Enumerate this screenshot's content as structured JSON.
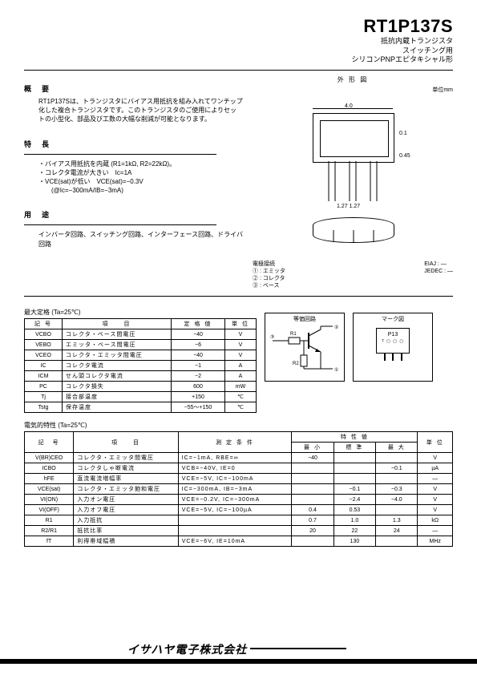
{
  "header": {
    "part_number": "RT1P137S",
    "subtitle_line1": "抵抗内蔵トランジスタ",
    "subtitle_line2": "スイッチング用",
    "subtitle_line3": "シリコンPNPエピタキシャル形"
  },
  "overview": {
    "heading": "概　要",
    "body": "RT1P137Sは、トランジスタにバイアス用抵抗を組み入れてワンチップ化した複合トランジスタです。このトランジスタのご使用によりセットの小型化、部品及び工数の大幅な削減が可能となります。"
  },
  "features": {
    "heading": "特　長",
    "items": [
      "・バイアス用抵抗を内蔵 (R1=1kΩ, R2=22kΩ)。",
      "・コレクタ電流が大きい　Ic=1A",
      "・VCE(sat)が低い　VCE(sat)=−0.3V\n　　(@Ic=−300mA/IB=−3mA)"
    ]
  },
  "applications": {
    "heading": "用　途",
    "body": "インバータ回路、スイッチング回路、インターフェース回路、ドライバ回路"
  },
  "outline": {
    "heading": "外 形 図",
    "unit": "単位mm",
    "dims": {
      "width": "4.0",
      "marker": "0.1",
      "lead_thickness": "0.45",
      "pitch": "1.27 1.27"
    },
    "pinout_heading": "電極接続",
    "pins": [
      "① : エミッタ",
      "② : コレクタ",
      "③ : ベース"
    ],
    "eiaj": "EIAJ : —",
    "jedec": "JEDEC : —"
  },
  "ratings": {
    "caption": "最大定格 (Ta=25℃)",
    "headers": [
      "記 号",
      "項　　目",
      "定 格 値",
      "単 位"
    ],
    "rows": [
      [
        "VCBO",
        "コレクタ・ベース間電圧",
        "−40",
        "V"
      ],
      [
        "VEBO",
        "エミッタ・ベース間電圧",
        "−6",
        "V"
      ],
      [
        "VCEO",
        "コレクタ・エミッタ間電圧",
        "−40",
        "V"
      ],
      [
        "IC",
        "コレクタ電流",
        "−1",
        "A"
      ],
      [
        "ICM",
        "せん頭コレクタ電流",
        "−2",
        "A"
      ],
      [
        "PC",
        "コレクタ損失",
        "600",
        "mW"
      ],
      [
        "Tj",
        "接合部温度",
        "+150",
        "℃"
      ],
      [
        "Tstg",
        "保存温度",
        "−55〜+150",
        "℃"
      ]
    ]
  },
  "equiv_circuit": {
    "heading": "等価回路",
    "labels": {
      "in": "(IN)",
      "out": "(OUT)",
      "gnd": "(GND)",
      "r1": "R1",
      "r2": "R2"
    }
  },
  "marking": {
    "heading": "マーク図",
    "code": "P13"
  },
  "electrical": {
    "caption": "電気的特性 (Ta=25℃)",
    "headers": {
      "symbol": "記　号",
      "item": "項　　目",
      "conditions": "測 定 条 件",
      "values": "特 性 値",
      "min": "最 小",
      "typ": "標 準",
      "max": "最 大",
      "unit": "単 位"
    },
    "rows": [
      [
        "V(BR)CEO",
        "コレクタ・エミッタ間電圧",
        "IC=−1mA, RBE=∞",
        "−40",
        "",
        "",
        "V"
      ],
      [
        "ICBO",
        "コレクタしゃ断電流",
        "VCB=−40V, IE=0",
        "",
        "",
        "−0.1",
        "µA"
      ],
      [
        "hFE",
        "直流電流増幅率",
        "VCE=−5V, IC=−100mA",
        "",
        "",
        "",
        "—"
      ],
      [
        "VCE(sat)",
        "コレクタ・エミッタ飽和電圧",
        "IC=−300mA, IB=−3mA",
        "",
        "−0.1",
        "−0.3",
        "V"
      ],
      [
        "VI(ON)",
        "入力オン電圧",
        "VCE=−0.2V, IC=−300mA",
        "",
        "−2.4",
        "−4.0",
        "V"
      ],
      [
        "VI(OFF)",
        "入力オフ電圧",
        "VCE=−5V, IC=−100µA",
        "0.4",
        "0.53",
        "",
        "V"
      ],
      [
        "R1",
        "入力抵抗",
        "",
        "0.7",
        "1.0",
        "1.3",
        "kΩ"
      ],
      [
        "R2/R1",
        "抵抗比率",
        "",
        "20",
        "22",
        "24",
        "—"
      ],
      [
        "fT",
        "利得帯域幅積",
        "VCE=−6V, IE=10mA",
        "",
        "130",
        "",
        "MHz"
      ]
    ]
  },
  "footer": {
    "company": "イサハヤ電子株式会社"
  }
}
